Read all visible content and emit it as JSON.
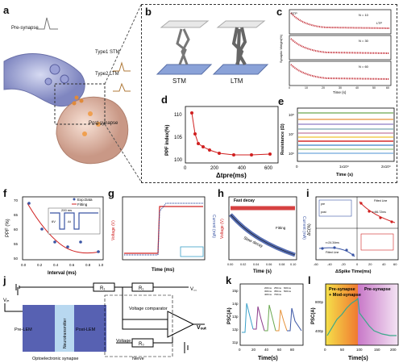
{
  "labels": {
    "a": "a",
    "b": "b",
    "c": "c",
    "d": "d",
    "e": "e",
    "f": "f",
    "g": "g",
    "h": "h",
    "i": "i",
    "j": "j",
    "k": "k",
    "l": "l"
  },
  "panel_a": {
    "pre": "Pre-synapse",
    "post": "Post-synapse",
    "type1": "Type1  STM",
    "type2": "Type2  LTM"
  },
  "panel_b": {
    "stm": "STM",
    "ltm": "LTM"
  },
  "panel_c": {
    "ylabel": "Synaptic Weight(%)",
    "xlabel": "Time (s)",
    "stp": "STP",
    "ltp": "LTP",
    "n": [
      "N = 10",
      "N = 30",
      "N = 60"
    ],
    "xticks": [
      "0",
      "10",
      "20",
      "30",
      "40",
      "50",
      "60"
    ]
  },
  "panel_d": {
    "ylabel": "PPF index(%)",
    "xlabel": "Δtpre(ms)",
    "xticks": [
      "0",
      "200",
      "400",
      "600"
    ],
    "yticks": [
      "100",
      "105",
      "110"
    ]
  },
  "panel_e": {
    "ylabel": "Resistance (Ω)",
    "xlabel": "Time (s)",
    "xticks": [
      "0",
      "1x10⁴",
      "2x10⁴"
    ],
    "yticks": [
      "10⁸",
      "10⁷",
      "10⁶"
    ]
  },
  "panel_f": {
    "ylabel": "PPF (%)",
    "xlabel": "Interval (ms)",
    "legend": [
      "Exp.Data",
      "Fitting"
    ],
    "inset_t": "200 ms",
    "inset_v": "6V",
    "inset_dt": "Δt",
    "xticks": [
      "0.0",
      "0.2",
      "0.4",
      "0.6",
      "0.8",
      "1.0"
    ],
    "yticks": [
      "50",
      "55",
      "60",
      "65",
      "70"
    ]
  },
  "panel_g": {
    "ylabel_l": "Voltage (V)",
    "ylabel_r": "Current (mA)",
    "xlabel": "Time (ms)"
  },
  "panel_h": {
    "ylabel_l": "Voltage (V)",
    "ylabel_r": "Current (mA)",
    "xlabel": "Time (s)",
    "fast": "Fast decay",
    "slow": "Slow decay",
    "fitting": "Fitting",
    "xticks": [
      "0.00",
      "0.02",
      "0.04",
      "0.06",
      "0.08",
      "0.10"
    ]
  },
  "panel_i": {
    "ylabel": "ΔC(%)",
    "xlabel": "ΔSpike Time(ms)",
    "fitted": "Fitted Line",
    "tau1": "τ=24.34ms",
    "tau2": "τ=86.72ms",
    "pre": "pre",
    "post": "post",
    "xticks": [
      "-60",
      "-40",
      "-20",
      "0",
      "20",
      "40",
      "60"
    ]
  },
  "panel_j": {
    "vin": "Vᵢₙ",
    "vout": "Vₒᵤₜ",
    "vcc": "V꜀꜀",
    "r1a": "R₁",
    "r1b": "R₁",
    "r0": "R₀",
    "cmp": "Voltage comparator",
    "volt": "Voltage",
    "prelem": "Pre-LEM",
    "postlem": "Post-LEM",
    "neuro": "Neurotransmitter",
    "opto": "Optoelectronic synapse",
    "nerve": "Nerve"
  },
  "panel_k": {
    "ylabel": "PSC(A)",
    "xlabel": "Time(s)",
    "legend": [
      "200ms",
      "300ms",
      "400ms",
      "600ms",
      "250ms",
      "350ms",
      "500ms",
      "700ms"
    ],
    "xticks": [
      "0",
      "20",
      "40",
      "60",
      "80"
    ],
    "yticks": [
      "11p",
      "12p",
      "13p",
      "14p",
      "15p"
    ]
  },
  "panel_l": {
    "ylabel": "PSC(A)",
    "xlabel": "Time(s)",
    "pre1": "Pre-synapse",
    "mod": "+ Mod-synapse",
    "pre2": "Pre-synapse",
    "xticks": [
      "0",
      "50",
      "100",
      "150",
      "200"
    ],
    "yticks": [
      "400p",
      "800p"
    ]
  },
  "colors": {
    "blue": "#3a55a4",
    "red": "#d02020",
    "purple": "#8a3a8a"
  }
}
